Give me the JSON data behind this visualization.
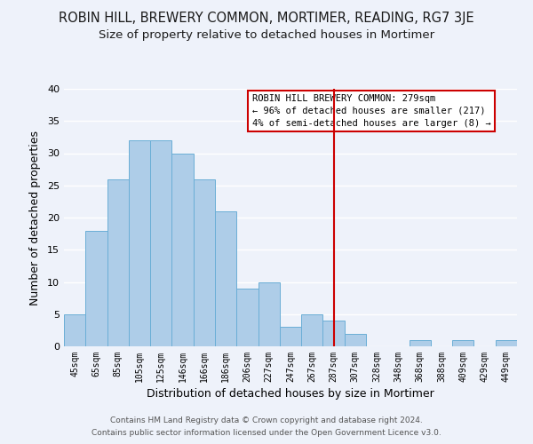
{
  "title": "ROBIN HILL, BREWERY COMMON, MORTIMER, READING, RG7 3JE",
  "subtitle": "Size of property relative to detached houses in Mortimer",
  "xlabel": "Distribution of detached houses by size in Mortimer",
  "ylabel": "Number of detached properties",
  "bin_labels": [
    "45sqm",
    "65sqm",
    "85sqm",
    "105sqm",
    "125sqm",
    "146sqm",
    "166sqm",
    "186sqm",
    "206sqm",
    "227sqm",
    "247sqm",
    "267sqm",
    "287sqm",
    "307sqm",
    "328sqm",
    "348sqm",
    "368sqm",
    "388sqm",
    "409sqm",
    "429sqm",
    "449sqm"
  ],
  "bar_heights": [
    5,
    18,
    26,
    32,
    32,
    30,
    26,
    21,
    9,
    10,
    3,
    5,
    4,
    2,
    0,
    0,
    1,
    0,
    1,
    0,
    1
  ],
  "bar_color": "#aecde8",
  "bar_edge_color": "#6aaed6",
  "reference_line_x_label": "287sqm",
  "reference_line_color": "#cc0000",
  "ylim": [
    0,
    40
  ],
  "yticks": [
    0,
    5,
    10,
    15,
    20,
    25,
    30,
    35,
    40
  ],
  "annotation_title": "ROBIN HILL BREWERY COMMON: 279sqm",
  "annotation_line1": "← 96% of detached houses are smaller (217)",
  "annotation_line2": "4% of semi-detached houses are larger (8) →",
  "annotation_box_color": "#ffffff",
  "annotation_box_edge": "#cc0000",
  "footnote1": "Contains HM Land Registry data © Crown copyright and database right 2024.",
  "footnote2": "Contains public sector information licensed under the Open Government Licence v3.0.",
  "background_color": "#eef2fa",
  "grid_color": "#ffffff",
  "title_fontsize": 10.5,
  "subtitle_fontsize": 9.5
}
